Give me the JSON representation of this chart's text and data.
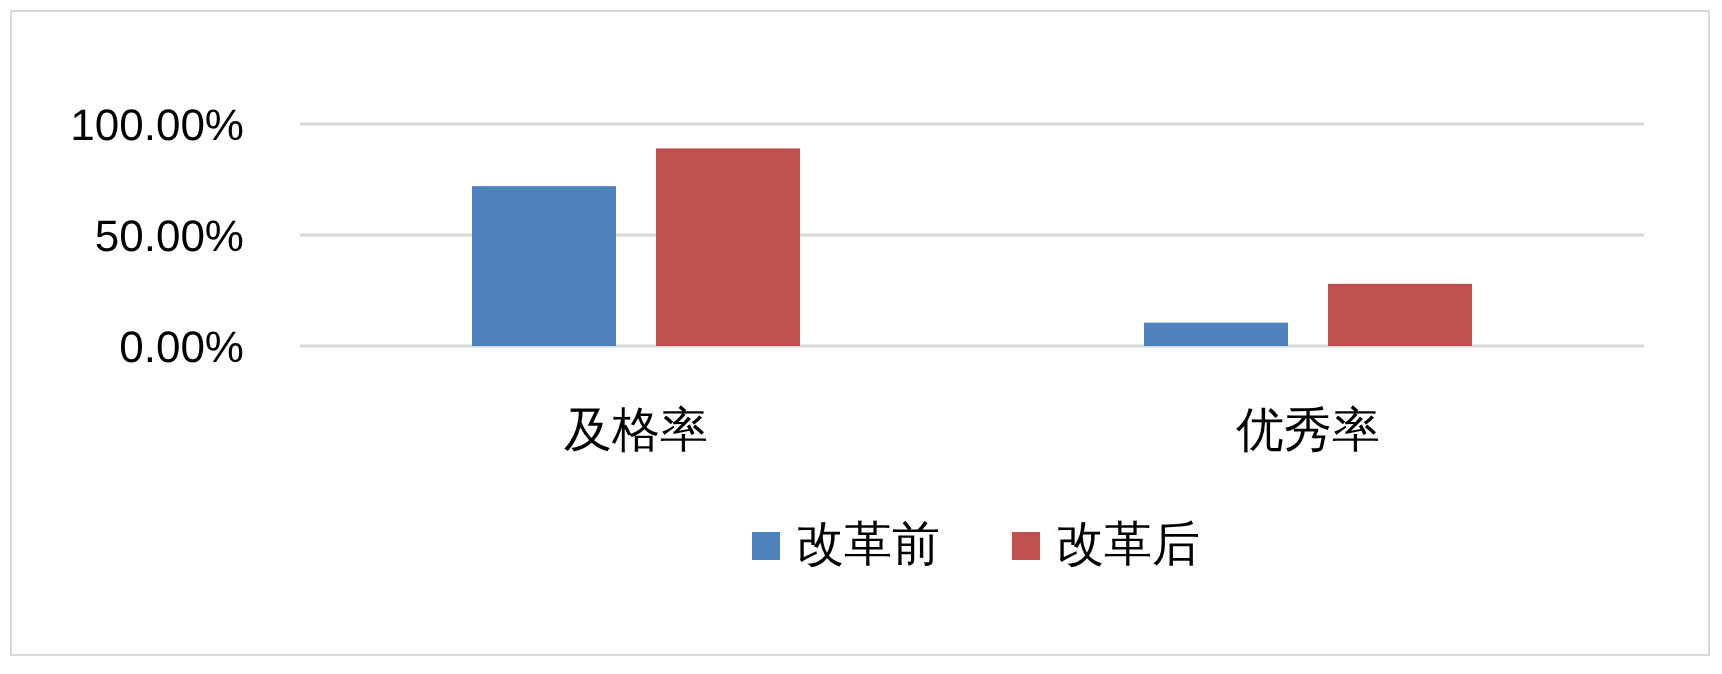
{
  "chart_data": {
    "type": "bar",
    "categories": [
      "及格率",
      "优秀率"
    ],
    "series": [
      {
        "name": "改革前",
        "color": "#4f81bd",
        "values": [
          72,
          10.5
        ]
      },
      {
        "name": "改革后",
        "color": "#c0504d",
        "values": [
          89,
          28
        ]
      }
    ],
    "ylim": [
      0,
      100
    ],
    "yticks": [
      {
        "value": 0,
        "label": "0.00%"
      },
      {
        "value": 50,
        "label": "50.00%"
      },
      {
        "value": 100,
        "label": "100.00%"
      }
    ],
    "grid": "y",
    "legend": "bottom"
  }
}
